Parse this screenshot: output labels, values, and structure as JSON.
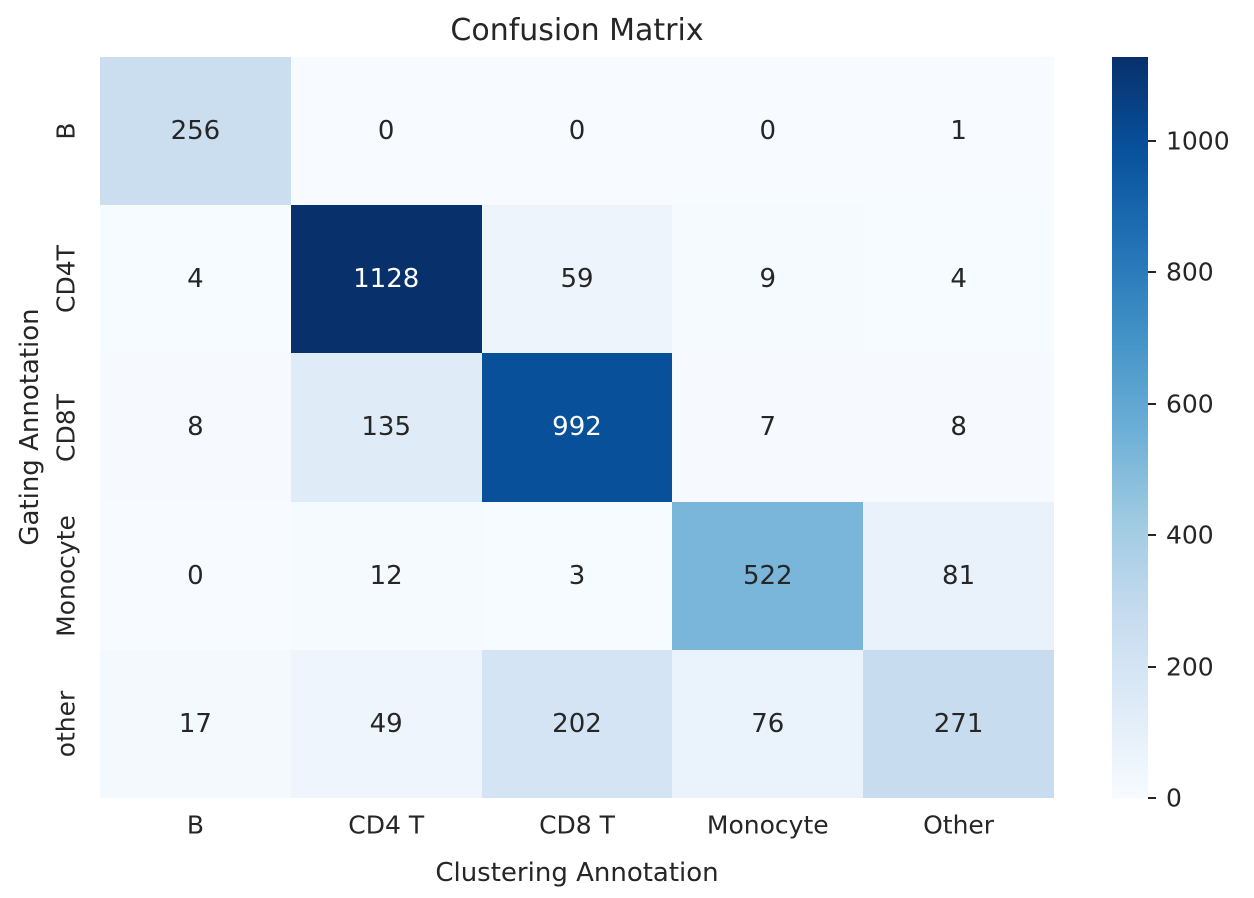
{
  "figure": {
    "background": "#ffffff",
    "text_color": "#262626"
  },
  "chart_data": {
    "type": "heatmap",
    "title": "Confusion Matrix",
    "xlabel": "Clustering Annotation",
    "ylabel": "Gating Annotation",
    "x_categories": [
      "B",
      "CD4 T",
      "CD8 T",
      "Monocyte",
      "Other"
    ],
    "y_categories": [
      "B",
      "CD4T",
      "CD8T",
      "Monocyte",
      "other"
    ],
    "values": [
      [
        256,
        0,
        0,
        0,
        1
      ],
      [
        4,
        1128,
        59,
        9,
        4
      ],
      [
        8,
        135,
        992,
        7,
        8
      ],
      [
        0,
        12,
        3,
        522,
        81
      ],
      [
        17,
        49,
        202,
        76,
        271
      ]
    ],
    "vmin": 0,
    "vmax": 1128,
    "colormap_name": "Blues",
    "colormap_stops": [
      {
        "pos": 0.0,
        "color": "#f7fbff"
      },
      {
        "pos": 0.125,
        "color": "#deebf7"
      },
      {
        "pos": 0.25,
        "color": "#c6dbef"
      },
      {
        "pos": 0.375,
        "color": "#9ecae1"
      },
      {
        "pos": 0.5,
        "color": "#6baed6"
      },
      {
        "pos": 0.625,
        "color": "#4292c6"
      },
      {
        "pos": 0.75,
        "color": "#2171b5"
      },
      {
        "pos": 0.875,
        "color": "#08519c"
      },
      {
        "pos": 1.0,
        "color": "#08306b"
      }
    ],
    "colorbar_ticks": [
      0,
      200,
      400,
      600,
      800,
      1000
    ],
    "colorbar_position": "right",
    "annotated": true,
    "annotation_text_dark": "#262626",
    "annotation_text_light": "#ffffff",
    "grid": false
  }
}
